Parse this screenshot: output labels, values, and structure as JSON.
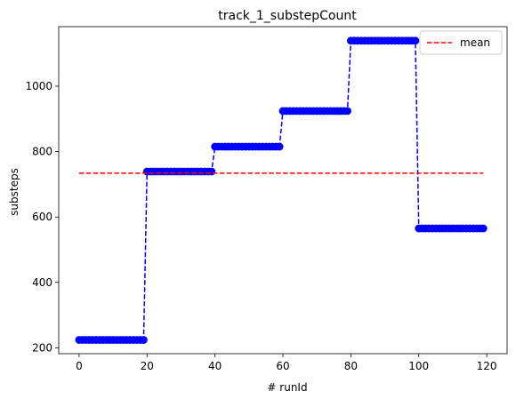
{
  "chart_data": {
    "type": "line",
    "title": "track_1_substepCount",
    "xlabel": "# runId",
    "ylabel": "substeps",
    "xlim": [
      -6,
      126
    ],
    "ylim": [
      182,
      1182
    ],
    "xticks": [
      0,
      20,
      40,
      60,
      80,
      100,
      120
    ],
    "yticks": [
      200,
      400,
      600,
      800,
      1000
    ],
    "grid": false,
    "legend": {
      "placement": "top-right",
      "entries": [
        "mean"
      ]
    },
    "series": [
      {
        "style": "dashed line with circle markers",
        "color": "#0000ff",
        "segments": [
          {
            "x_start": 0,
            "x_end": 19,
            "y": 224
          },
          {
            "x_start": 20,
            "x_end": 39,
            "y": 739
          },
          {
            "x_start": 40,
            "x_end": 59,
            "y": 815
          },
          {
            "x_start": 60,
            "x_end": 79,
            "y": 924
          },
          {
            "x_start": 80,
            "x_end": 99,
            "y": 1139
          },
          {
            "x_start": 100,
            "x_end": 119,
            "y": 565
          }
        ]
      },
      {
        "name": "mean",
        "style": "dashed line",
        "color": "#ff0000",
        "x": [
          0,
          119
        ],
        "y": [
          734,
          734
        ]
      }
    ]
  }
}
